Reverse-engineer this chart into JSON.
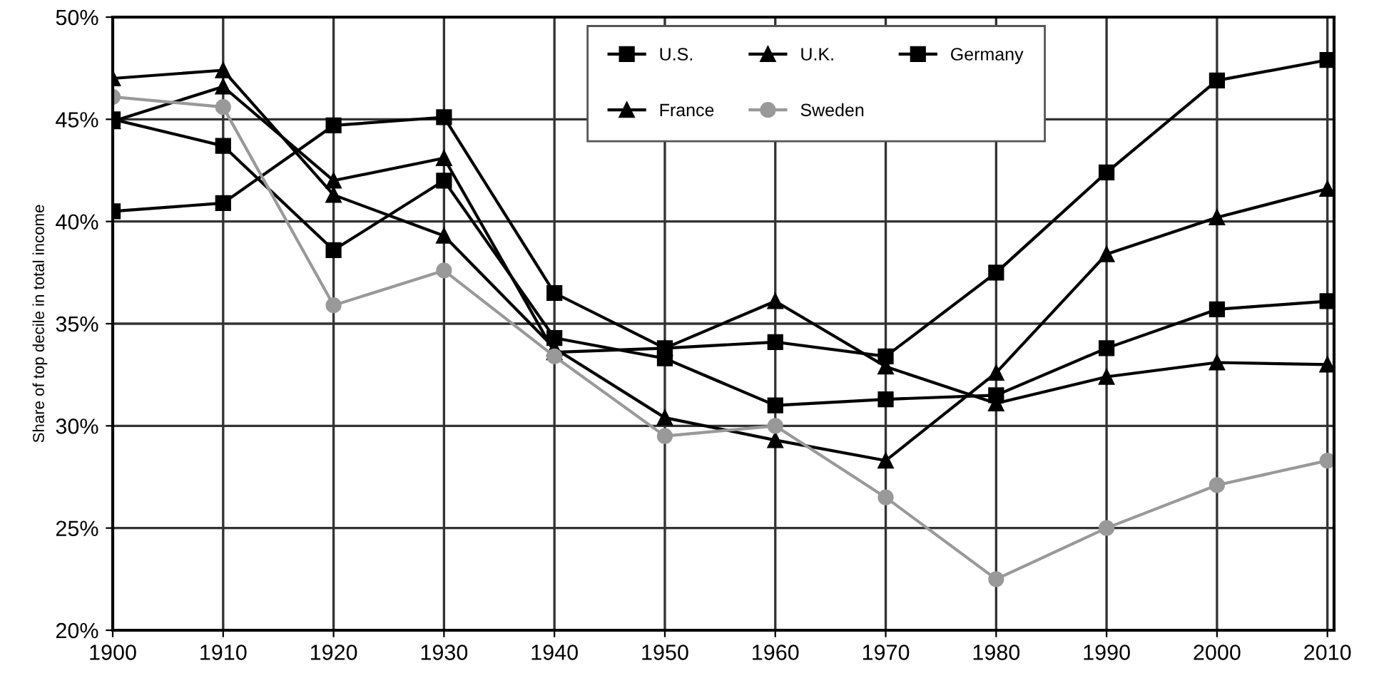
{
  "chart_data": {
    "type": "line",
    "ylabel": "Share of top decile in total income",
    "x": [
      1900,
      1910,
      1920,
      1930,
      1940,
      1950,
      1960,
      1970,
      1980,
      1990,
      2000,
      2010
    ],
    "series": [
      {
        "name": "U.S.",
        "color": "#000000",
        "marker": "square",
        "values": [
          40.5,
          40.9,
          44.7,
          45.1,
          36.5,
          33.8,
          34.1,
          33.4,
          37.5,
          42.4,
          46.9,
          47.9
        ]
      },
      {
        "name": "U.K.",
        "color": "#000000",
        "marker": "triangle",
        "values": [
          47.0,
          47.4,
          41.3,
          39.3,
          33.8,
          30.4,
          29.3,
          28.3,
          32.6,
          38.4,
          40.2,
          41.6
        ]
      },
      {
        "name": "Germany",
        "color": "#000000",
        "marker": "square",
        "values": [
          45.0,
          43.7,
          38.6,
          42.0,
          34.3,
          33.3,
          31.0,
          31.3,
          31.5,
          33.8,
          35.7,
          36.1
        ]
      },
      {
        "name": "France",
        "color": "#000000",
        "marker": "triangle",
        "values": [
          44.9,
          46.6,
          42.0,
          43.1,
          33.6,
          33.8,
          36.1,
          32.9,
          31.1,
          32.4,
          33.1,
          33.0
        ]
      },
      {
        "name": "Sweden",
        "color": "#999999",
        "marker": "circle",
        "values": [
          46.1,
          45.6,
          35.9,
          37.6,
          33.4,
          29.5,
          30.0,
          26.5,
          22.5,
          25.0,
          27.1,
          28.3
        ]
      }
    ],
    "xlim": [
      1900,
      2010.6
    ],
    "xticks": [
      1900,
      1910,
      1920,
      1930,
      1940,
      1950,
      1960,
      1970,
      1980,
      1990,
      2000,
      2010
    ],
    "ylim": [
      20,
      50
    ],
    "yticks": [
      {
        "value": 20,
        "label": "20%"
      },
      {
        "value": 25,
        "label": "25%"
      },
      {
        "value": 30,
        "label": "30%"
      },
      {
        "value": 35,
        "label": "35%"
      },
      {
        "value": 40,
        "label": "40%"
      },
      {
        "value": 45,
        "label": "45%"
      },
      {
        "value": 50,
        "label": "50%"
      }
    ],
    "grid": true,
    "legend": "top",
    "line_style": "solid"
  }
}
